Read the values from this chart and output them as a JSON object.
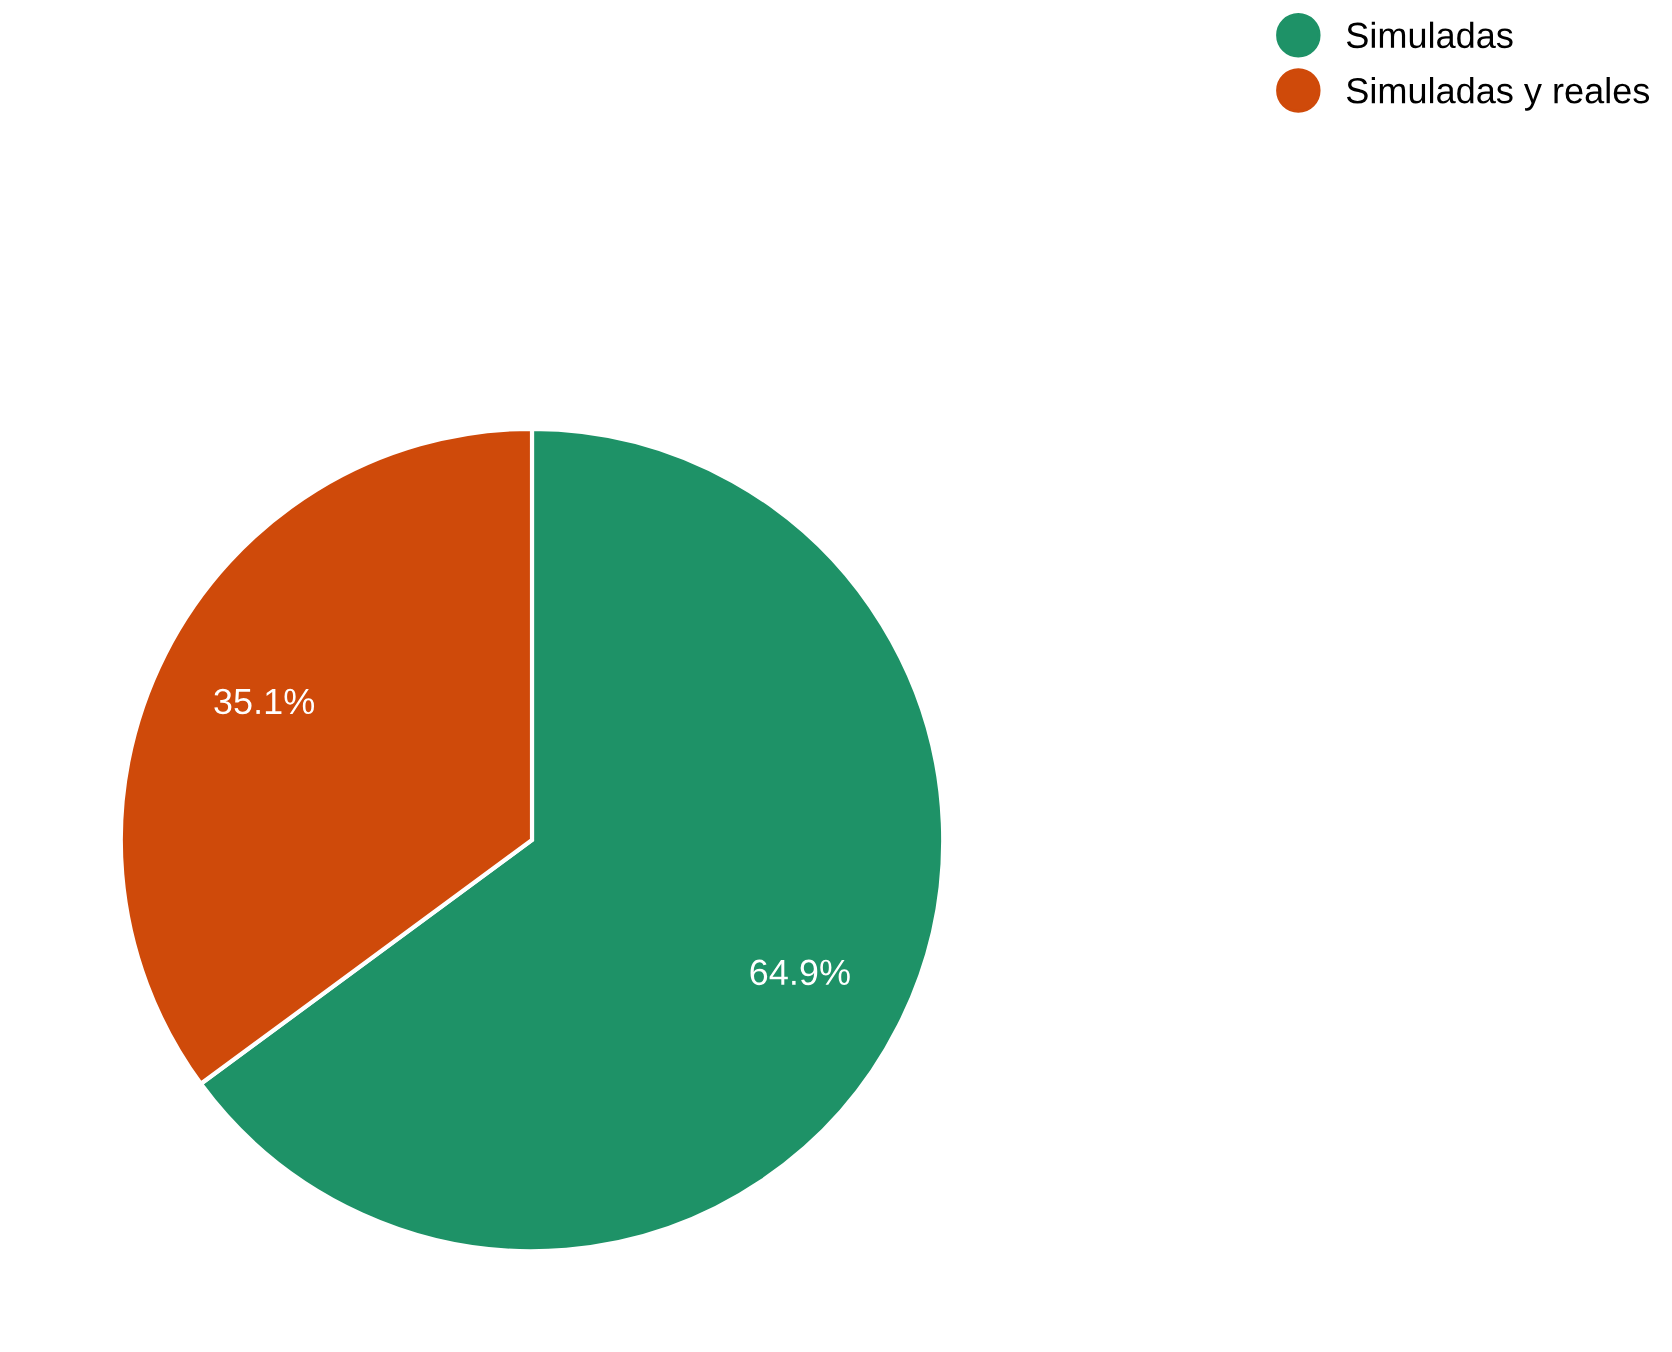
{
  "chart_data": {
    "type": "pie",
    "categories": [
      "Simuladas",
      "Simuladas y reales"
    ],
    "values": [
      64.9,
      35.1
    ],
    "colors": [
      "#1e9267",
      "#cf4a0a"
    ],
    "value_labels": [
      "64.9%",
      "35.1%"
    ],
    "legend": "top right"
  }
}
